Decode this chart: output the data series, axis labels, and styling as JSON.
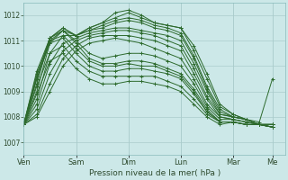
{
  "bg_color": "#cce8e8",
  "plot_bg_color": "#cce8e8",
  "line_color": "#2d6a2d",
  "grid_color": "#aacccc",
  "xlabel_text": "Pression niveau de la mer( hPa )",
  "xtick_labels": [
    "Ven",
    "Sam",
    "Dim",
    "Lun",
    "Mar",
    "Me"
  ],
  "xtick_positions": [
    0,
    24,
    48,
    72,
    96,
    114
  ],
  "ylim": [
    1006.5,
    1012.5
  ],
  "yticks": [
    1007,
    1008,
    1009,
    1010,
    1011,
    1012
  ],
  "xlim": [
    0,
    120
  ],
  "series": [
    {
      "x": [
        0,
        6,
        12,
        18,
        24,
        30,
        36,
        42,
        48,
        54,
        60,
        66,
        72,
        78,
        84,
        90,
        96,
        102,
        108,
        114
      ],
      "y": [
        1007.7,
        1009.6,
        1011.1,
        1011.5,
        1011.2,
        1011.5,
        1011.7,
        1012.1,
        1012.2,
        1012.0,
        1011.7,
        1011.6,
        1011.5,
        1010.8,
        1009.7,
        1008.5,
        1008.1,
        1007.9,
        1007.8,
        1009.5
      ]
    },
    {
      "x": [
        0,
        6,
        12,
        18,
        24,
        30,
        36,
        42,
        48,
        54,
        60,
        66,
        72,
        78,
        84,
        90,
        96,
        102,
        108,
        114
      ],
      "y": [
        1007.7,
        1009.3,
        1011.1,
        1011.5,
        1011.2,
        1011.5,
        1011.7,
        1011.9,
        1012.1,
        1011.9,
        1011.7,
        1011.6,
        1011.5,
        1010.6,
        1009.5,
        1008.4,
        1008.1,
        1007.9,
        1007.7,
        1007.7
      ]
    },
    {
      "x": [
        0,
        6,
        12,
        18,
        24,
        30,
        36,
        42,
        48,
        54,
        60,
        66,
        72,
        78,
        84,
        90,
        96,
        102,
        108,
        114
      ],
      "y": [
        1007.7,
        1009.0,
        1010.9,
        1011.4,
        1011.2,
        1011.4,
        1011.6,
        1011.8,
        1011.9,
        1011.8,
        1011.6,
        1011.5,
        1011.3,
        1010.4,
        1009.2,
        1008.3,
        1008.0,
        1007.9,
        1007.7,
        1007.7
      ]
    },
    {
      "x": [
        0,
        6,
        12,
        18,
        24,
        30,
        36,
        42,
        48,
        54,
        60,
        66,
        72,
        78,
        84,
        90,
        96,
        102,
        108,
        114
      ],
      "y": [
        1007.7,
        1008.7,
        1010.5,
        1011.2,
        1011.2,
        1011.4,
        1011.5,
        1011.7,
        1011.8,
        1011.7,
        1011.5,
        1011.4,
        1011.2,
        1010.3,
        1009.1,
        1008.2,
        1008.0,
        1007.9,
        1007.7,
        1007.7
      ]
    },
    {
      "x": [
        0,
        6,
        12,
        18,
        24,
        30,
        36,
        42,
        48,
        54,
        60,
        66,
        72,
        78,
        84,
        90,
        96,
        102,
        108,
        114
      ],
      "y": [
        1007.7,
        1008.5,
        1010.1,
        1010.9,
        1011.1,
        1011.3,
        1011.4,
        1011.5,
        1011.5,
        1011.4,
        1011.3,
        1011.2,
        1011.0,
        1010.1,
        1009.0,
        1008.1,
        1008.0,
        1007.9,
        1007.7,
        1007.7
      ]
    },
    {
      "x": [
        0,
        6,
        12,
        18,
        24,
        30,
        36,
        42,
        48,
        54,
        60,
        66,
        72,
        78,
        84,
        90,
        96,
        102,
        108,
        114
      ],
      "y": [
        1007.7,
        1008.3,
        1009.7,
        1010.6,
        1011.0,
        1011.2,
        1011.3,
        1011.4,
        1011.4,
        1011.3,
        1011.2,
        1011.0,
        1010.8,
        1009.9,
        1008.8,
        1008.1,
        1008.0,
        1007.9,
        1007.7,
        1007.7
      ]
    },
    {
      "x": [
        0,
        6,
        12,
        18,
        24,
        30,
        36,
        42,
        48,
        54,
        60,
        66,
        72,
        78,
        84,
        90,
        96,
        102,
        108,
        114
      ],
      "y": [
        1007.7,
        1008.1,
        1009.3,
        1010.3,
        1010.8,
        1011.1,
        1011.2,
        1011.2,
        1011.2,
        1011.1,
        1011.0,
        1010.8,
        1010.6,
        1009.7,
        1008.7,
        1008.0,
        1007.9,
        1007.8,
        1007.7,
        1007.7
      ]
    },
    {
      "x": [
        0,
        6,
        12,
        18,
        24,
        30,
        36,
        42,
        48,
        54,
        60,
        66,
        72,
        78,
        84,
        90,
        96,
        102,
        108,
        114
      ],
      "y": [
        1007.7,
        1008.0,
        1009.0,
        1010.0,
        1010.6,
        1010.9,
        1011.0,
        1011.1,
        1011.0,
        1010.9,
        1010.7,
        1010.5,
        1010.3,
        1009.5,
        1008.5,
        1008.0,
        1007.9,
        1007.8,
        1007.7,
        1007.7
      ]
    },
    {
      "x": [
        0,
        6,
        12,
        18,
        24,
        30,
        36,
        42,
        48,
        54,
        60,
        66,
        72,
        78,
        84,
        90,
        96,
        102,
        108,
        114
      ],
      "y": [
        1007.7,
        1009.5,
        1011.0,
        1011.4,
        1011.0,
        1010.5,
        1010.3,
        1010.4,
        1010.5,
        1010.5,
        1010.4,
        1010.2,
        1010.0,
        1009.3,
        1008.4,
        1007.9,
        1007.9,
        1007.8,
        1007.7,
        1007.6
      ]
    },
    {
      "x": [
        0,
        6,
        12,
        18,
        24,
        30,
        36,
        42,
        48,
        54,
        60,
        66,
        72,
        78,
        84,
        90,
        96,
        102,
        108,
        114
      ],
      "y": [
        1007.7,
        1009.8,
        1011.1,
        1011.4,
        1010.9,
        1010.3,
        1010.1,
        1010.1,
        1010.2,
        1010.2,
        1010.1,
        1009.9,
        1009.7,
        1009.1,
        1008.3,
        1007.8,
        1007.8,
        1007.7,
        1007.7,
        1007.6
      ]
    },
    {
      "x": [
        0,
        6,
        12,
        18,
        24,
        30,
        36,
        42,
        48,
        54,
        60,
        66,
        72,
        78,
        84,
        90,
        96,
        102,
        108,
        114
      ],
      "y": [
        1007.7,
        1009.5,
        1010.9,
        1011.1,
        1010.5,
        1010.0,
        1009.8,
        1009.8,
        1009.9,
        1009.9,
        1009.8,
        1009.7,
        1009.5,
        1008.9,
        1008.2,
        1007.8,
        1007.8,
        1007.7,
        1007.7,
        1007.6
      ]
    },
    {
      "x": [
        0,
        6,
        12,
        18,
        24,
        30,
        36,
        42,
        48,
        54,
        60,
        66,
        72,
        78,
        84,
        90,
        96,
        102,
        108,
        114
      ],
      "y": [
        1007.7,
        1009.2,
        1010.5,
        1010.8,
        1010.2,
        1009.8,
        1009.6,
        1009.6,
        1009.6,
        1009.6,
        1009.6,
        1009.4,
        1009.2,
        1008.7,
        1008.1,
        1007.8,
        1007.8,
        1007.7,
        1007.7,
        1007.6
      ]
    },
    {
      "x": [
        0,
        6,
        12,
        18,
        24,
        30,
        36,
        42,
        48,
        54,
        60,
        66,
        72,
        78,
        84,
        90,
        96,
        102,
        108,
        114
      ],
      "y": [
        1007.7,
        1008.9,
        1010.2,
        1010.5,
        1009.9,
        1009.5,
        1009.3,
        1009.3,
        1009.4,
        1009.4,
        1009.3,
        1009.2,
        1009.0,
        1008.5,
        1008.0,
        1007.7,
        1007.8,
        1007.7,
        1007.7,
        1007.6
      ]
    },
    {
      "x": [
        0,
        6,
        12,
        18,
        24,
        30,
        36,
        42,
        48,
        54,
        60,
        66,
        72,
        78,
        84,
        90,
        96,
        102,
        108,
        114
      ],
      "y": [
        1007.7,
        1009.7,
        1011.0,
        1011.2,
        1010.7,
        1010.2,
        1010.0,
        1010.0,
        1010.1,
        1010.0,
        1010.0,
        1009.8,
        1009.6,
        1009.0,
        1008.2,
        1007.8,
        1007.8,
        1007.7,
        1007.7,
        1007.6
      ]
    }
  ]
}
